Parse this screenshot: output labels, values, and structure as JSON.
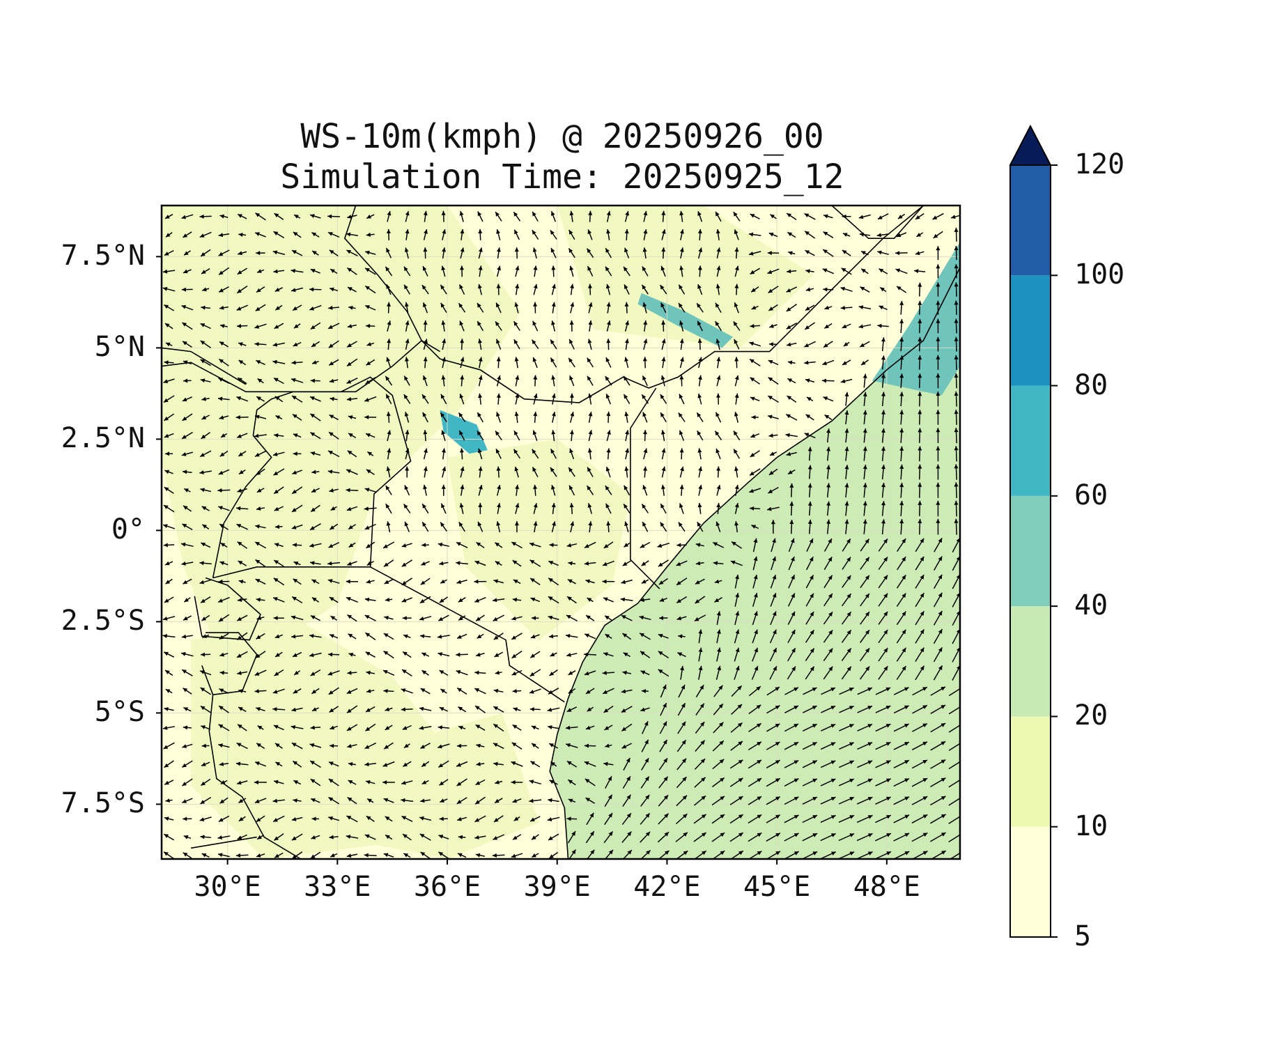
{
  "title": {
    "line1": "WS-10m(kmph) @ 20250926_00",
    "line2": "Simulation Time: 20250925_12"
  },
  "map": {
    "extent": {
      "lon": [
        28.2,
        50.0
      ],
      "lat": [
        -9.0,
        8.9
      ]
    },
    "lat_ticks": [
      {
        "value": 7.5,
        "label": "7.5°N"
      },
      {
        "value": 5,
        "label": "5°N"
      },
      {
        "value": 2.5,
        "label": "2.5°N"
      },
      {
        "value": 0,
        "label": "0°"
      },
      {
        "value": -2.5,
        "label": "2.5°S"
      },
      {
        "value": -5,
        "label": "5°S"
      },
      {
        "value": -7.5,
        "label": "7.5°S"
      }
    ],
    "lon_ticks": [
      {
        "value": 30,
        "label": "30°E"
      },
      {
        "value": 33,
        "label": "33°E"
      },
      {
        "value": 36,
        "label": "36°E"
      },
      {
        "value": 39,
        "label": "39°E"
      },
      {
        "value": 42,
        "label": "42°E"
      },
      {
        "value": 45,
        "label": "45°E"
      },
      {
        "value": 48,
        "label": "48°E"
      }
    ],
    "background_color": "#ffffd9",
    "land_color": "#f1f9c0",
    "ocean_color": "#cdebb4",
    "jet_color": "#6fc4bc",
    "core_color": "#41b6c4"
  },
  "colorbar": {
    "levels": [
      5,
      10,
      20,
      40,
      60,
      80,
      100,
      120
    ],
    "labels": [
      "5",
      "10",
      "20",
      "40",
      "60",
      "80",
      "100",
      "120"
    ],
    "colors": [
      "#ffffd9",
      "#edf8b1",
      "#c7e9b4",
      "#7fcdbb",
      "#41b6c4",
      "#1d91c0",
      "#225ea8",
      "#253494"
    ],
    "extend_color": "#081d58",
    "extend": "max"
  }
}
